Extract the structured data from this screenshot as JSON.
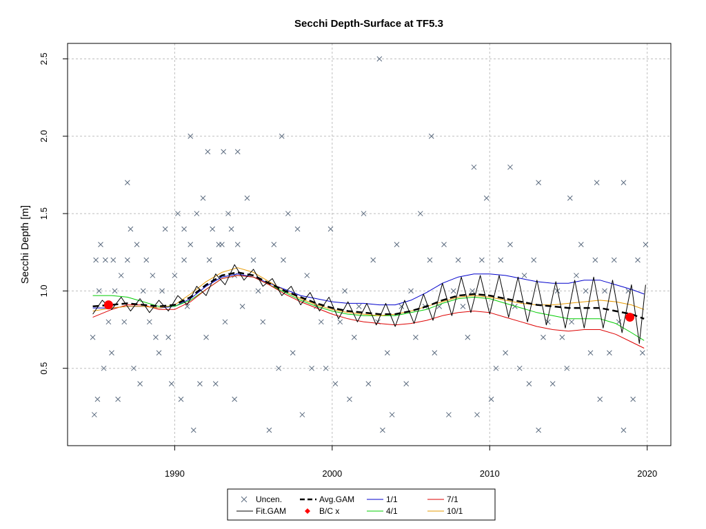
{
  "chart_data": {
    "type": "line",
    "title": "Secchi Depth-Surface at TF5.3",
    "xlabel": "",
    "ylabel": "Secchi Depth [m]",
    "xlim": [
      1983.2,
      2021.5
    ],
    "ylim": [
      0.0,
      2.6
    ],
    "x_ticks": [
      1990,
      2000,
      2010,
      2020
    ],
    "y_ticks": [
      0.5,
      1.0,
      1.5,
      2.0,
      2.5
    ],
    "grid": true,
    "legend_position": "bottom",
    "legend": [
      {
        "label": "Uncen.",
        "kind": "cross",
        "color": "#5a6a7e"
      },
      {
        "label": "Fit.GAM",
        "kind": "line",
        "color": "#000000"
      },
      {
        "label": "Avg.GAM",
        "kind": "dashed",
        "color": "#000000"
      },
      {
        "label": "B/C x",
        "kind": "diamond",
        "color": "#ff0000"
      },
      {
        "label": "1/1",
        "kind": "line",
        "color": "#0000cc"
      },
      {
        "label": "4/1",
        "kind": "line",
        "color": "#00cc00"
      },
      {
        "label": "7/1",
        "kind": "line",
        "color": "#dd0000"
      },
      {
        "label": "10/1",
        "kind": "line",
        "color": "#e69900"
      }
    ],
    "series": [
      {
        "name": "Avg.GAM",
        "color": "#000000",
        "x": [
          1984.8,
          1986,
          1987,
          1988,
          1989,
          1990,
          1991,
          1992,
          1993,
          1994,
          1995,
          1996,
          1997,
          1998,
          1999,
          2000,
          2001,
          2002,
          2003,
          2004,
          2005,
          2006,
          2007,
          2008,
          2009,
          2010,
          2011,
          2012,
          2013,
          2014,
          2015,
          2016,
          2017,
          2018,
          2019,
          2019.8
        ],
        "y": [
          0.9,
          0.91,
          0.92,
          0.91,
          0.9,
          0.91,
          0.96,
          1.04,
          1.1,
          1.12,
          1.1,
          1.05,
          1.0,
          0.96,
          0.92,
          0.89,
          0.87,
          0.86,
          0.85,
          0.85,
          0.87,
          0.9,
          0.94,
          0.97,
          0.98,
          0.97,
          0.95,
          0.93,
          0.91,
          0.9,
          0.89,
          0.89,
          0.89,
          0.87,
          0.85,
          0.82
        ]
      },
      {
        "name": "1/1",
        "color": "#0000cc",
        "x": [
          1984.8,
          1986,
          1987,
          1988,
          1989,
          1990,
          1991,
          1992,
          1993,
          1994,
          1995,
          1996,
          1997,
          1998,
          1999,
          2000,
          2001,
          2002,
          2003,
          2004,
          2005,
          2006,
          2007,
          2008,
          2009,
          2010,
          2011,
          2012,
          2013,
          2014,
          2015,
          2016,
          2017,
          2018,
          2019,
          2019.8
        ],
        "y": [
          0.89,
          0.89,
          0.9,
          0.9,
          0.89,
          0.9,
          0.95,
          1.03,
          1.09,
          1.11,
          1.09,
          1.05,
          1.01,
          0.97,
          0.95,
          0.93,
          0.92,
          0.92,
          0.91,
          0.91,
          0.94,
          0.99,
          1.05,
          1.09,
          1.11,
          1.11,
          1.1,
          1.08,
          1.06,
          1.05,
          1.05,
          1.07,
          1.07,
          1.04,
          1.01,
          0.98
        ]
      },
      {
        "name": "4/1",
        "color": "#00cc00",
        "x": [
          1984.8,
          1986,
          1987,
          1988,
          1989,
          1990,
          1991,
          1992,
          1993,
          1994,
          1995,
          1996,
          1997,
          1998,
          1999,
          2000,
          2001,
          2002,
          2003,
          2004,
          2005,
          2006,
          2007,
          2008,
          2009,
          2010,
          2011,
          2012,
          2013,
          2014,
          2015,
          2016,
          2017,
          2018,
          2019,
          2019.8
        ],
        "y": [
          0.97,
          0.97,
          0.96,
          0.93,
          0.9,
          0.9,
          0.94,
          1.01,
          1.08,
          1.1,
          1.09,
          1.04,
          0.99,
          0.94,
          0.9,
          0.87,
          0.85,
          0.84,
          0.84,
          0.84,
          0.86,
          0.88,
          0.92,
          0.95,
          0.96,
          0.95,
          0.92,
          0.89,
          0.86,
          0.84,
          0.82,
          0.82,
          0.82,
          0.79,
          0.73,
          0.68
        ]
      },
      {
        "name": "7/1",
        "color": "#dd0000",
        "x": [
          1984.8,
          1986,
          1987,
          1988,
          1989,
          1990,
          1991,
          1992,
          1993,
          1994,
          1995,
          1996,
          1997,
          1998,
          1999,
          2000,
          2001,
          2002,
          2003,
          2004,
          2005,
          2006,
          2007,
          2008,
          2009,
          2010,
          2011,
          2012,
          2013,
          2014,
          2015,
          2016,
          2017,
          2018,
          2019,
          2019.8
        ],
        "y": [
          0.83,
          0.88,
          0.91,
          0.91,
          0.88,
          0.88,
          0.93,
          1.01,
          1.08,
          1.1,
          1.09,
          1.04,
          0.98,
          0.93,
          0.89,
          0.85,
          0.82,
          0.8,
          0.79,
          0.78,
          0.79,
          0.81,
          0.84,
          0.86,
          0.87,
          0.86,
          0.83,
          0.8,
          0.77,
          0.75,
          0.74,
          0.75,
          0.75,
          0.72,
          0.67,
          0.63
        ]
      },
      {
        "name": "10/1",
        "color": "#e69900",
        "x": [
          1984.8,
          1986,
          1987,
          1988,
          1989,
          1990,
          1991,
          1992,
          1993,
          1994,
          1995,
          1996,
          1997,
          1998,
          1999,
          2000,
          2001,
          2002,
          2003,
          2004,
          2005,
          2006,
          2007,
          2008,
          2009,
          2010,
          2011,
          2012,
          2013,
          2014,
          2015,
          2016,
          2017,
          2018,
          2019,
          2019.8
        ],
        "y": [
          0.87,
          0.89,
          0.9,
          0.9,
          0.89,
          0.91,
          0.98,
          1.06,
          1.12,
          1.15,
          1.12,
          1.06,
          1.0,
          0.95,
          0.91,
          0.88,
          0.86,
          0.85,
          0.84,
          0.85,
          0.87,
          0.9,
          0.93,
          0.96,
          0.97,
          0.96,
          0.94,
          0.92,
          0.91,
          0.91,
          0.92,
          0.93,
          0.94,
          0.93,
          0.91,
          0.88
        ]
      },
      {
        "name": "Fit.GAM",
        "color": "#000000",
        "x": [
          1984.8,
          1985.4,
          1986.0,
          1986.6,
          1987.2,
          1987.8,
          1988.4,
          1989.0,
          1989.6,
          1990.2,
          1990.8,
          1991.4,
          1992.0,
          1992.6,
          1993.2,
          1993.8,
          1994.4,
          1995.0,
          1995.6,
          1996.2,
          1996.8,
          1997.4,
          1998.0,
          1998.6,
          1999.2,
          1999.8,
          2000.4,
          2001.0,
          2001.6,
          2002.2,
          2002.8,
          2003.4,
          2004.0,
          2004.6,
          2005.2,
          2005.8,
          2006.4,
          2007.0,
          2007.6,
          2008.2,
          2008.8,
          2009.4,
          2010.0,
          2010.6,
          2011.2,
          2011.8,
          2012.4,
          2013.0,
          2013.6,
          2014.2,
          2014.8,
          2015.4,
          2016.0,
          2016.6,
          2017.2,
          2017.8,
          2018.4,
          2019.0,
          2019.5,
          2019.9
        ],
        "y": [
          0.85,
          0.94,
          0.88,
          0.96,
          0.87,
          0.95,
          0.86,
          0.94,
          0.87,
          0.97,
          0.91,
          1.03,
          0.97,
          1.11,
          1.04,
          1.17,
          1.07,
          1.14,
          1.03,
          1.08,
          0.97,
          1.03,
          0.91,
          0.99,
          0.87,
          0.96,
          0.82,
          0.93,
          0.8,
          0.92,
          0.78,
          0.92,
          0.77,
          0.94,
          0.79,
          0.98,
          0.81,
          1.05,
          0.84,
          1.09,
          0.86,
          1.1,
          0.85,
          1.1,
          0.83,
          1.09,
          0.8,
          1.07,
          0.78,
          1.06,
          0.76,
          1.07,
          0.76,
          1.09,
          0.76,
          1.07,
          0.73,
          1.04,
          0.66,
          1.04
        ]
      }
    ],
    "bc_points": {
      "label": "B/C x",
      "color": "#ff0000",
      "x": [
        1985.8,
        2018.9
      ],
      "y": [
        0.91,
        0.83
      ]
    },
    "uncen_points": {
      "label": "Uncen.",
      "color": "#5a6a7e",
      "x": [
        1984.9,
        1985.0,
        1985.1,
        1985.3,
        1985.5,
        1985.6,
        1985.8,
        1986.0,
        1986.2,
        1986.4,
        1986.6,
        1986.8,
        1987.0,
        1987.2,
        1987.4,
        1987.6,
        1987.8,
        1988.0,
        1988.2,
        1988.4,
        1988.6,
        1988.8,
        1989.0,
        1989.2,
        1989.4,
        1989.6,
        1989.8,
        1990.0,
        1990.2,
        1990.4,
        1990.6,
        1990.8,
        1991.0,
        1991.2,
        1991.4,
        1991.6,
        1991.8,
        1992.0,
        1992.2,
        1992.4,
        1992.6,
        1992.8,
        1993.0,
        1993.2,
        1993.4,
        1993.6,
        1993.8,
        1994.0,
        1994.3,
        1994.6,
        1995.0,
        1995.3,
        1995.6,
        1996.0,
        1996.3,
        1996.6,
        1996.9,
        1997.2,
        1997.5,
        1997.8,
        1998.1,
        1998.4,
        1998.7,
        1999.0,
        1999.3,
        1999.6,
        1999.9,
        2000.2,
        2000.5,
        2000.8,
        2001.1,
        2001.4,
        2001.7,
        2002.0,
        2002.3,
        2002.6,
        2002.9,
        2003.2,
        2003.5,
        2003.8,
        2004.1,
        2004.4,
        2004.7,
        2005.0,
        2005.3,
        2005.6,
        2005.9,
        2006.2,
        2006.5,
        2006.8,
        2007.1,
        2007.4,
        2007.7,
        2008.0,
        2008.3,
        2008.6,
        2008.9,
        2009.2,
        2009.5,
        2009.8,
        2010.1,
        2010.4,
        2010.7,
        2011.0,
        2011.3,
        2011.6,
        2011.9,
        2012.2,
        2012.5,
        2012.8,
        2013.1,
        2013.4,
        2013.7,
        2014.0,
        2014.3,
        2014.6,
        2014.9,
        2015.2,
        2015.5,
        2015.8,
        2016.1,
        2016.4,
        2016.7,
        2017.0,
        2017.3,
        2017.6,
        2017.9,
        2018.2,
        2018.5,
        2018.8,
        2019.1,
        2019.4,
        2019.7,
        2019.9,
        2003.0,
        1991.0,
        1992.1,
        1993.1,
        1994.0,
        1996.8,
        2006.3,
        2009.0,
        1987.0,
        1984.8,
        1985.2,
        1986.1,
        1990.6,
        1993.8,
        2011.3,
        2013.1,
        2015.1,
        2016.8,
        2018.5
      ],
      "y": [
        0.2,
        1.2,
        0.3,
        1.3,
        0.5,
        1.2,
        0.8,
        0.6,
        1.0,
        0.3,
        1.1,
        0.8,
        1.2,
        1.4,
        0.5,
        1.3,
        0.4,
        1.0,
        1.2,
        0.8,
        1.1,
        0.7,
        0.6,
        1.0,
        1.4,
        0.7,
        0.4,
        1.1,
        1.5,
        0.3,
        1.4,
        0.9,
        1.3,
        0.1,
        1.5,
        0.4,
        1.6,
        0.7,
        1.2,
        1.4,
        0.4,
        1.3,
        1.3,
        0.8,
        1.5,
        1.4,
        0.3,
        1.3,
        0.9,
        1.6,
        1.2,
        1.0,
        0.8,
        0.1,
        1.3,
        0.5,
        1.2,
        1.5,
        0.6,
        1.4,
        0.2,
        1.1,
        0.5,
        0.9,
        0.8,
        0.5,
        1.4,
        0.4,
        0.8,
        1.0,
        0.3,
        0.7,
        0.9,
        1.5,
        0.4,
        1.2,
        0.8,
        0.1,
        0.6,
        0.2,
        1.3,
        0.9,
        0.4,
        1.0,
        0.7,
        1.5,
        0.9,
        1.2,
        0.6,
        0.9,
        1.3,
        0.2,
        1.0,
        1.2,
        0.9,
        0.7,
        1.0,
        0.2,
        1.2,
        1.6,
        0.3,
        0.5,
        1.2,
        0.6,
        1.3,
        0.9,
        0.5,
        1.1,
        0.4,
        1.2,
        0.1,
        0.7,
        0.8,
        0.4,
        1.0,
        0.7,
        0.5,
        0.8,
        1.1,
        1.3,
        1.0,
        0.6,
        1.2,
        0.3,
        1.0,
        0.6,
        1.2,
        0.8,
        0.1,
        1.0,
        0.3,
        1.2,
        0.6,
        1.3,
        2.5,
        2.0,
        1.9,
        1.9,
        1.9,
        2.0,
        2.0,
        1.8,
        1.7,
        0.7,
        1.0,
        1.2,
        1.2,
        1.1,
        1.8,
        1.7,
        1.6,
        1.7,
        1.7
      ]
    }
  }
}
